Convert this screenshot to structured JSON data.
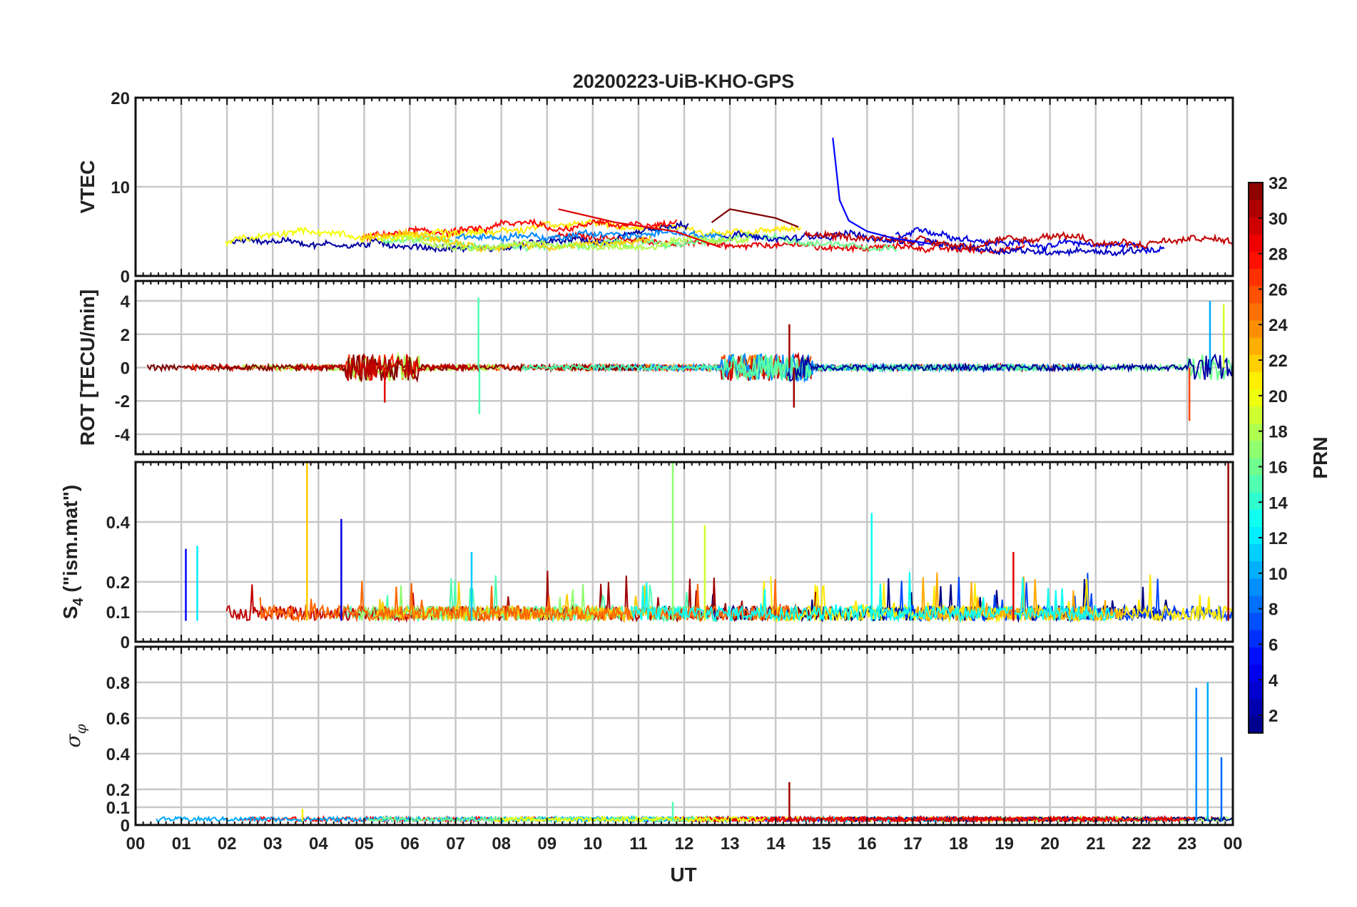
{
  "chart_data": {
    "type": "line",
    "title": "20200223-UiB-KHO-GPS",
    "xlabel": "UT",
    "x_ticks": [
      "00",
      "01",
      "02",
      "03",
      "04",
      "05",
      "06",
      "07",
      "08",
      "09",
      "10",
      "11",
      "12",
      "13",
      "14",
      "15",
      "16",
      "17",
      "18",
      "19",
      "20",
      "21",
      "22",
      "23",
      "00"
    ],
    "xlim_hours": [
      0,
      24
    ],
    "grid": true,
    "panels": [
      {
        "id": "vtec",
        "ylabel": "VTEC",
        "ylim": [
          0,
          20
        ],
        "yticks": [
          0,
          10,
          20
        ],
        "baseline": 3.5,
        "features": [
          {
            "series": 5,
            "x": [
              15.25,
              15.4,
              15.6,
              16.0,
              16.6,
              17.4
            ],
            "y": [
              15.5,
              8.5,
              6.2,
              5.0,
              4.2,
              3.6
            ]
          },
          {
            "series": 29,
            "x": [
              9.25,
              10.5,
              11.8,
              12.8
            ],
            "y": [
              7.5,
              6.0,
              5.0,
              3.2
            ]
          },
          {
            "series": 32,
            "x": [
              12.6,
              13.0,
              13.5,
              14.0,
              14.5
            ],
            "y": [
              6.0,
              7.5,
              7.0,
              6.5,
              5.5
            ]
          }
        ]
      },
      {
        "id": "rot",
        "ylabel": "ROT [TECU/min]",
        "ylim": [
          -5.2,
          5.2
        ],
        "yticks": [
          -4,
          -2,
          0,
          2,
          4
        ],
        "baseline": 0,
        "spikes": [
          {
            "series": 15,
            "x": 7.5,
            "y": 4.2
          },
          {
            "series": 15,
            "x": 7.52,
            "y": -2.8
          },
          {
            "series": 31,
            "x": 14.3,
            "y": 2.6
          },
          {
            "series": 31,
            "x": 14.4,
            "y": -2.4
          },
          {
            "series": 29,
            "x": 5.45,
            "y": -2.1
          },
          {
            "series": 26,
            "x": 23.05,
            "y": -3.2
          },
          {
            "series": 10,
            "x": 23.5,
            "y": 4.0
          },
          {
            "series": 19,
            "x": 23.8,
            "y": 3.8
          }
        ]
      },
      {
        "id": "s4",
        "ylabel": "S4 (\"ism.mat\")",
        "ylim": [
          0,
          0.6
        ],
        "yticks": [
          0,
          0.1,
          0.2,
          0.4
        ],
        "baseline": 0.07,
        "spikes": [
          {
            "series": 22,
            "x": 3.75,
            "y": 0.6
          },
          {
            "series": 4,
            "x": 4.5,
            "y": 0.41
          },
          {
            "series": 17,
            "x": 11.75,
            "y": 0.6
          },
          {
            "series": 19,
            "x": 12.45,
            "y": 0.39
          },
          {
            "series": 13,
            "x": 16.1,
            "y": 0.43
          },
          {
            "series": 5,
            "x": 1.1,
            "y": 0.31
          },
          {
            "series": 12,
            "x": 1.35,
            "y": 0.32
          },
          {
            "series": 11,
            "x": 7.35,
            "y": 0.3
          },
          {
            "series": 29,
            "x": 19.2,
            "y": 0.3
          },
          {
            "series": 31,
            "x": 23.9,
            "y": 0.6
          }
        ]
      },
      {
        "id": "sigma",
        "ylabel": "σφ",
        "ylim": [
          0,
          1.0
        ],
        "yticks": [
          0,
          0.1,
          0.2,
          0.4,
          0.6,
          0.8
        ],
        "baseline": 0.02,
        "spikes": [
          {
            "series": 31,
            "x": 14.3,
            "y": 0.24
          },
          {
            "series": 9,
            "x": 23.2,
            "y": 0.77
          },
          {
            "series": 10,
            "x": 23.45,
            "y": 0.8
          },
          {
            "series": 8,
            "x": 23.75,
            "y": 0.38
          },
          {
            "series": 15,
            "x": 11.75,
            "y": 0.13
          },
          {
            "series": 21,
            "x": 3.65,
            "y": 0.09
          }
        ]
      }
    ],
    "colorbar": {
      "label": "PRN",
      "range": [
        1,
        32
      ],
      "ticks": [
        2,
        4,
        6,
        8,
        10,
        12,
        14,
        16,
        18,
        20,
        22,
        24,
        26,
        28,
        30,
        32
      ],
      "colormap": "jet"
    }
  }
}
